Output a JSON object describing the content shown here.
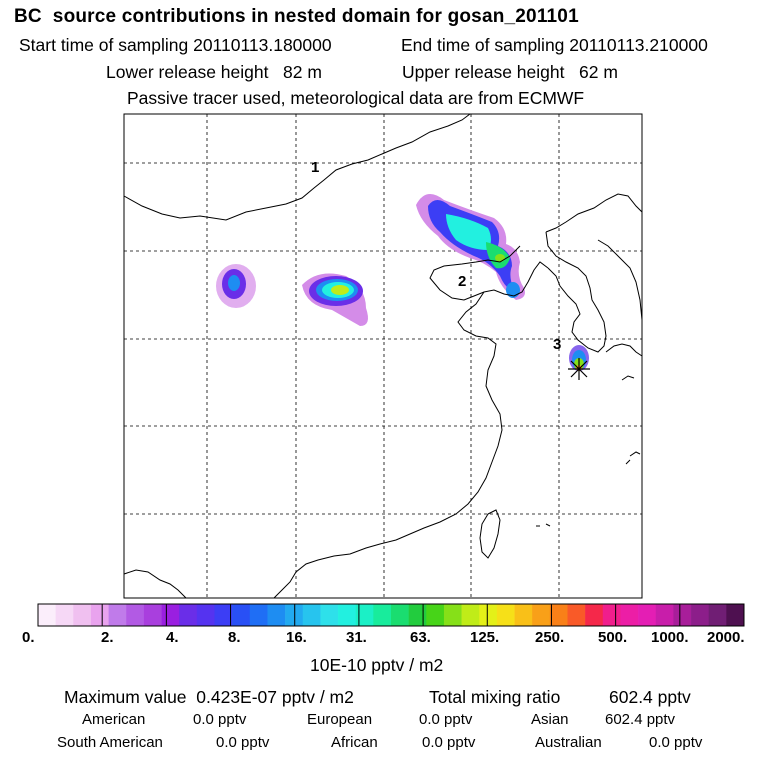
{
  "header": {
    "title": "BC  source contributions in nested domain for gosan_201101",
    "start_label": "Start time of sampling 20110113.180000",
    "end_label": "End time of sampling 20110113.210000",
    "lower_release": "Lower release height   82 m",
    "upper_release": "Upper release height   62 m",
    "note": "Passive tracer used, meteorological data are from ECMWF"
  },
  "map": {
    "region_labels": [
      "3",
      "2",
      "1"
    ],
    "receptor_site": "gosan"
  },
  "colorbar": {
    "ticks": [
      "0.",
      "2.",
      "4.",
      "8.",
      "16.",
      "31.",
      "63.",
      "125.",
      "250.",
      "500.",
      "1000.",
      "2000."
    ],
    "unit": "10E-10 pptv / m2",
    "colors": [
      "#fbeefb",
      "#f6d8f6",
      "#f0c0f0",
      "#e9a3ee",
      "#c07bea",
      "#b25ae4",
      "#a93fde",
      "#9a1fe0",
      "#6a2ee8",
      "#5533f0",
      "#3c3ef5",
      "#2950f5",
      "#1f6ef5",
      "#1e8df2",
      "#22aaf0",
      "#27c4ee",
      "#2ee0ea",
      "#22f0e0",
      "#1bf0c6",
      "#18ec9c",
      "#1add70",
      "#22cc3e",
      "#47d418",
      "#86e018",
      "#c0ec18",
      "#e4f018",
      "#f6e018",
      "#f9c018",
      "#f9a018",
      "#f98018",
      "#f95a28",
      "#f5284a",
      "#f01e8c",
      "#ec1ea6",
      "#e41eb4",
      "#c81eaa",
      "#a81e9a",
      "#8c1e8a",
      "#701e74",
      "#4e1050"
    ]
  },
  "summary": {
    "max_label": "Maximum value  0.423E-07 pptv / m2",
    "total_label": "Total mixing ratio",
    "total_value": "602.4 pptv",
    "american_label": "American",
    "american_value": "0.0 pptv",
    "european_label": "European",
    "european_value": "0.0 pptv",
    "asian_label": "Asian",
    "asian_value": "602.4 pptv",
    "south_american_label": "South American",
    "south_american_value": "0.0 pptv",
    "african_label": "African",
    "african_value": "0.0 pptv",
    "australian_label": "Australian",
    "australian_value": "0.0 pptv"
  }
}
